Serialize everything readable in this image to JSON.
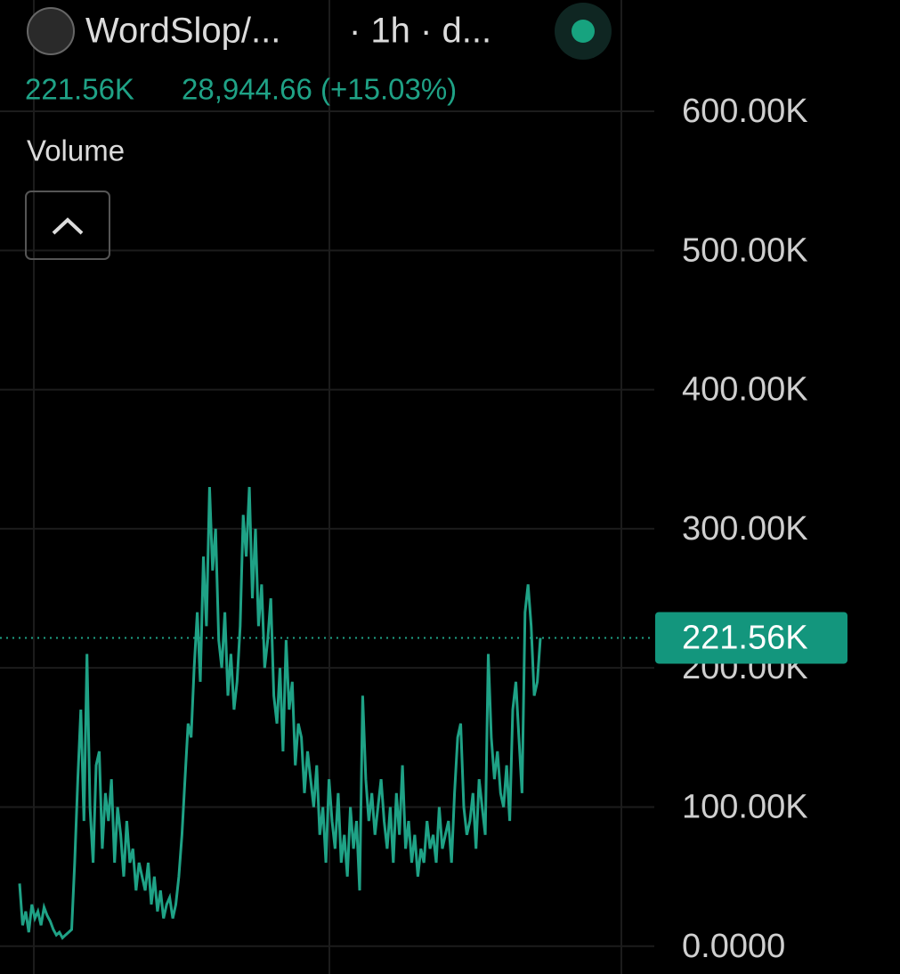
{
  "chart_data": {
    "type": "line",
    "title": "WordSlop/...",
    "interval": "· 1h · d...",
    "legend_value": "221.56K",
    "change": "28,944.66 (+15.03%)",
    "indicator": "Volume",
    "color": "#1fa286",
    "grid": true,
    "ylim": [
      -20000,
      680000
    ],
    "yticks": [
      {
        "value": 0,
        "label": "0.0000"
      },
      {
        "value": 100000,
        "label": "100.00K"
      },
      {
        "value": 200000,
        "label": "200.00K"
      },
      {
        "value": 300000,
        "label": "300.00K"
      },
      {
        "value": 400000,
        "label": "400.00K"
      },
      {
        "value": 500000,
        "label": "500.00K"
      },
      {
        "value": 600000,
        "label": "600.00K"
      }
    ],
    "last_value": 221560,
    "last_value_label": "221.56K",
    "values": [
      45000,
      15000,
      25000,
      10000,
      30000,
      20000,
      25000,
      15000,
      28000,
      22000,
      18000,
      12000,
      8000,
      10000,
      6000,
      8000,
      10000,
      12000,
      60000,
      120000,
      170000,
      90000,
      210000,
      100000,
      60000,
      130000,
      140000,
      70000,
      110000,
      90000,
      120000,
      60000,
      100000,
      80000,
      50000,
      90000,
      60000,
      70000,
      40000,
      60000,
      50000,
      40000,
      60000,
      30000,
      50000,
      25000,
      40000,
      20000,
      30000,
      35000,
      20000,
      30000,
      50000,
      80000,
      120000,
      160000,
      150000,
      200000,
      240000,
      190000,
      280000,
      230000,
      330000,
      270000,
      300000,
      220000,
      200000,
      240000,
      180000,
      210000,
      170000,
      190000,
      230000,
      310000,
      280000,
      330000,
      250000,
      300000,
      230000,
      260000,
      200000,
      220000,
      250000,
      180000,
      160000,
      200000,
      140000,
      220000,
      170000,
      190000,
      130000,
      160000,
      150000,
      110000,
      140000,
      120000,
      100000,
      130000,
      80000,
      100000,
      60000,
      120000,
      90000,
      70000,
      110000,
      60000,
      80000,
      50000,
      100000,
      70000,
      90000,
      40000,
      180000,
      120000,
      90000,
      110000,
      80000,
      100000,
      120000,
      90000,
      70000,
      100000,
      60000,
      110000,
      80000,
      130000,
      70000,
      90000,
      60000,
      80000,
      50000,
      70000,
      60000,
      90000,
      70000,
      80000,
      60000,
      100000,
      70000,
      80000,
      90000,
      60000,
      110000,
      150000,
      160000,
      100000,
      80000,
      90000,
      110000,
      70000,
      120000,
      100000,
      80000,
      210000,
      150000,
      120000,
      140000,
      110000,
      100000,
      130000,
      90000,
      170000,
      190000,
      150000,
      110000,
      240000,
      260000,
      230000,
      180000,
      190000,
      221560
    ]
  }
}
